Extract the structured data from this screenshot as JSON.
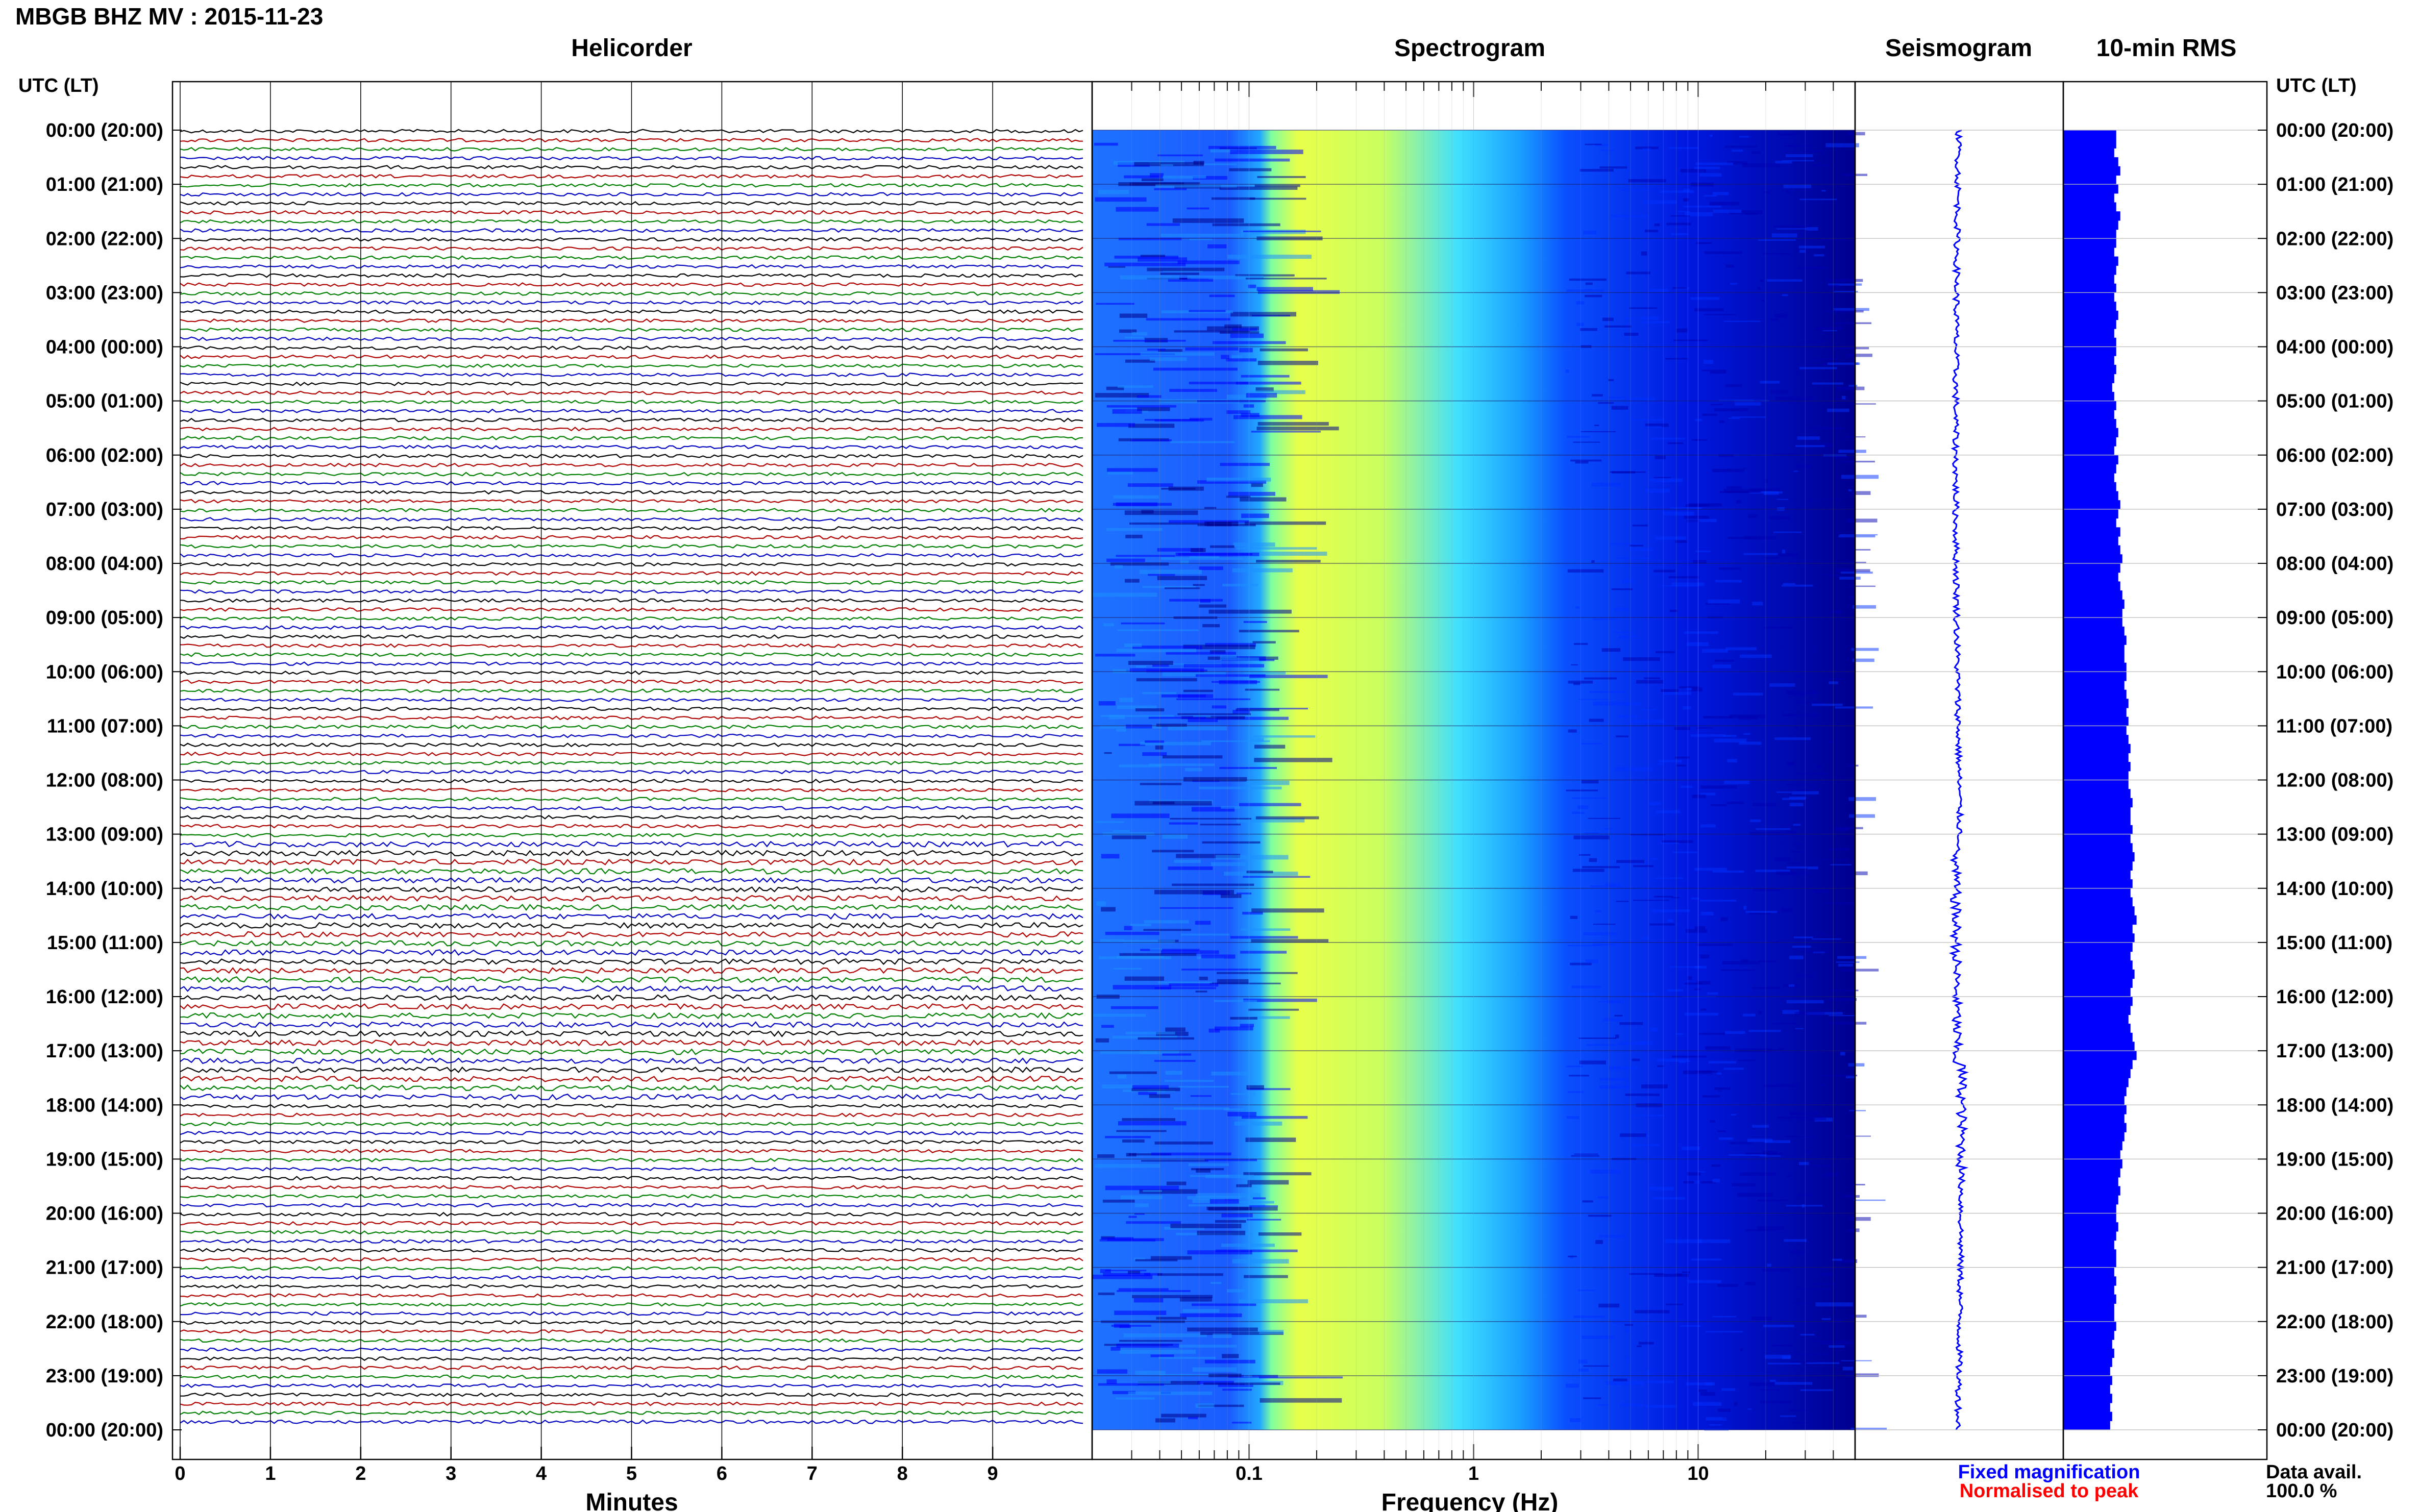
{
  "header": {
    "title": "MBGB BHZ MV : 2015-11-23"
  },
  "panels": {
    "helicorder": "Helicorder",
    "spectrogram": "Spectrogram",
    "seismogram": "Seismogram",
    "rms": "10-min RMS"
  },
  "axes": {
    "left_header": "UTC (LT)",
    "right_header": "UTC (LT)",
    "helicorder_xlabel": "Minutes",
    "spectrogram_xlabel": "Frequency (Hz)"
  },
  "legend": {
    "fixed": "Fixed magnification",
    "normalised": "Normalised to peak",
    "fixed_color": "#0000ff",
    "normalised_color": "#ff0000"
  },
  "availability": {
    "label": "Data avail.",
    "value": "100.0 %"
  },
  "chart_data": {
    "type": "helicorder-spectrogram",
    "time_labels": [
      "00:00 (20:00)",
      "01:00 (21:00)",
      "02:00 (22:00)",
      "03:00 (23:00)",
      "04:00 (00:00)",
      "05:00 (01:00)",
      "06:00 (02:00)",
      "07:00 (03:00)",
      "08:00 (04:00)",
      "09:00 (05:00)",
      "10:00 (06:00)",
      "11:00 (07:00)",
      "12:00 (08:00)",
      "13:00 (09:00)",
      "14:00 (10:00)",
      "15:00 (11:00)",
      "16:00 (12:00)",
      "17:00 (13:00)",
      "18:00 (14:00)",
      "19:00 (15:00)",
      "20:00 (16:00)",
      "21:00 (17:00)",
      "22:00 (18:00)",
      "23:00 (19:00)",
      "00:00 (20:00)"
    ],
    "helicorder": {
      "x_ticks": [
        "0",
        "1",
        "2",
        "3",
        "4",
        "5",
        "6",
        "7",
        "8",
        "9"
      ],
      "xlim": [
        0,
        10
      ],
      "trace_colors": [
        "#000000",
        "#b00000",
        "#008000",
        "#0000c0"
      ],
      "traces_per_hour": 6
    },
    "spectrogram": {
      "x_scale": "log",
      "xlim": [
        0.02,
        50
      ],
      "x_ticks": [
        {
          "value": 0.1,
          "label": "0.1"
        },
        {
          "value": 1,
          "label": "1"
        },
        {
          "value": 10,
          "label": "10"
        }
      ],
      "colormap": [
        "#00008b",
        "#0000ff",
        "#1e90ff",
        "#00ffff",
        "#7fff7f",
        "#ffff00"
      ]
    },
    "rms_10min": {
      "xlim": [
        0,
        1
      ],
      "values": [
        0.26,
        0.26,
        0.25,
        0.27,
        0.28,
        0.26,
        0.27,
        0.25,
        0.26,
        0.28,
        0.27,
        0.26,
        0.26,
        0.25,
        0.27,
        0.26,
        0.25,
        0.26,
        0.25,
        0.26,
        0.27,
        0.26,
        0.25,
        0.26,
        0.26,
        0.25,
        0.26,
        0.25,
        0.24,
        0.25,
        0.26,
        0.25,
        0.26,
        0.27,
        0.26,
        0.25,
        0.27,
        0.26,
        0.25,
        0.26,
        0.27,
        0.28,
        0.27,
        0.26,
        0.28,
        0.27,
        0.28,
        0.29,
        0.28,
        0.27,
        0.28,
        0.29,
        0.3,
        0.29,
        0.29,
        0.3,
        0.31,
        0.3,
        0.3,
        0.31,
        0.31,
        0.3,
        0.31,
        0.32,
        0.31,
        0.32,
        0.31,
        0.32,
        0.33,
        0.32,
        0.33,
        0.32,
        0.32,
        0.33,
        0.34,
        0.33,
        0.33,
        0.34,
        0.33,
        0.34,
        0.35,
        0.34,
        0.33,
        0.34,
        0.33,
        0.34,
        0.35,
        0.36,
        0.34,
        0.35,
        0.34,
        0.33,
        0.34,
        0.35,
        0.34,
        0.33,
        0.34,
        0.33,
        0.32,
        0.33,
        0.34,
        0.35,
        0.36,
        0.34,
        0.33,
        0.32,
        0.31,
        0.3,
        0.31,
        0.3,
        0.31,
        0.3,
        0.29,
        0.28,
        0.29,
        0.28,
        0.27,
        0.28,
        0.27,
        0.26,
        0.26,
        0.27,
        0.26,
        0.25,
        0.26,
        0.26,
        0.25,
        0.26,
        0.25,
        0.26,
        0.25,
        0.25,
        0.26,
        0.25,
        0.24,
        0.25,
        0.24,
        0.23,
        0.24,
        0.23,
        0.24,
        0.23,
        0.24,
        0.23
      ]
    }
  }
}
